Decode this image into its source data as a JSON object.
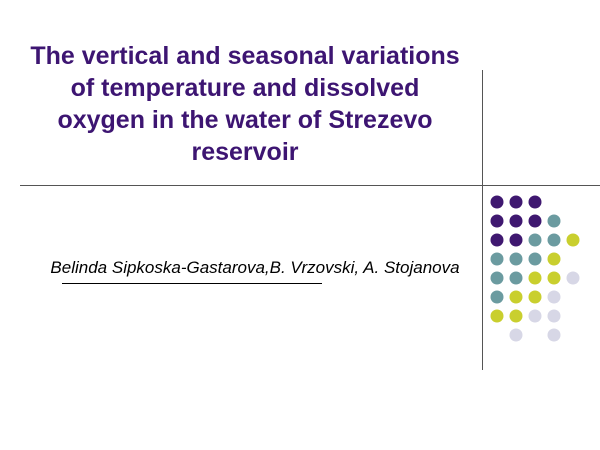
{
  "slide": {
    "title": "The vertical and seasonal variations of temperature and dissolved oxygen in the water of Strezevo reservoir",
    "authors": "Belinda Sipkoska-Gastarova,B. Vrzovski, A. Stojanova"
  },
  "palette": {
    "title_color": "#3d1572",
    "dark_purple": "#3f1870",
    "teal": "#6b9ba0",
    "yellow_green": "#c9cf2e",
    "lavender": "#d7d7e6"
  },
  "dot_grid": [
    [
      "dark_purple",
      "dark_purple",
      "dark_purple",
      null,
      null
    ],
    [
      "dark_purple",
      "dark_purple",
      "dark_purple",
      "teal",
      null
    ],
    [
      "dark_purple",
      "dark_purple",
      "teal",
      "teal",
      "yellow_green"
    ],
    [
      "teal",
      "teal",
      "teal",
      "yellow_green",
      null
    ],
    [
      "teal",
      "teal",
      "yellow_green",
      "yellow_green",
      "lavender"
    ],
    [
      "teal",
      "yellow_green",
      "yellow_green",
      "lavender",
      null
    ],
    [
      "yellow_green",
      "yellow_green",
      "lavender",
      "lavender",
      null
    ],
    [
      null,
      "lavender",
      null,
      "lavender",
      null
    ]
  ]
}
